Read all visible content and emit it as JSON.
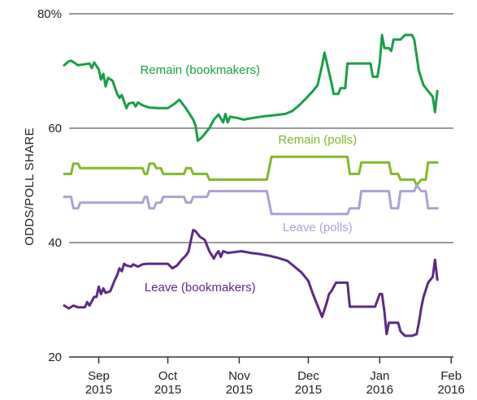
{
  "chart_data": {
    "type": "line",
    "ylabel": "ODDS/POLL SHARE",
    "ylim": [
      20,
      80
    ],
    "yticks": [
      {
        "value": 20,
        "label": "20"
      },
      {
        "value": 40,
        "label": "40"
      },
      {
        "value": 60,
        "label": "60"
      },
      {
        "value": 80,
        "label": "80%"
      }
    ],
    "xlim": [
      "2015-08-17",
      "2016-02-02"
    ],
    "xticks": [
      {
        "date": "2015-09-01",
        "month": "Sep",
        "year": "2015"
      },
      {
        "date": "2015-10-01",
        "month": "Oct",
        "year": "2015"
      },
      {
        "date": "2015-11-01",
        "month": "Nov",
        "year": "2015"
      },
      {
        "date": "2015-12-01",
        "month": "Dec",
        "year": "2015"
      },
      {
        "date": "2016-01-01",
        "month": "Jan",
        "year": "2016"
      },
      {
        "date": "2016-02-01",
        "month": "Feb",
        "year": "2016"
      }
    ],
    "grid": "horizontal",
    "series": [
      {
        "name": "Remain (bookmakers)",
        "color": "#1a9e48",
        "label_date": "2015-10-15",
        "label_value": 69.5,
        "points": [
          [
            "2015-08-17",
            71.0
          ],
          [
            "2015-08-19",
            71.7
          ],
          [
            "2015-08-20",
            71.8
          ],
          [
            "2015-08-23",
            71.0
          ],
          [
            "2015-08-28",
            71.3
          ],
          [
            "2015-08-29",
            70.5
          ],
          [
            "2015-08-30",
            71.5
          ],
          [
            "2015-09-01",
            70.3
          ],
          [
            "2015-09-02",
            68.5
          ],
          [
            "2015-09-03",
            69.5
          ],
          [
            "2015-09-04",
            67.3
          ],
          [
            "2015-09-05",
            68.8
          ],
          [
            "2015-09-07",
            68.3
          ],
          [
            "2015-09-09",
            66.0
          ],
          [
            "2015-09-10",
            65.3
          ],
          [
            "2015-09-11",
            65.8
          ],
          [
            "2015-09-13",
            63.5
          ],
          [
            "2015-09-14",
            64.3
          ],
          [
            "2015-09-16",
            64.5
          ],
          [
            "2015-09-17",
            63.8
          ],
          [
            "2015-09-18",
            64.5
          ],
          [
            "2015-09-20",
            64.0
          ],
          [
            "2015-09-23",
            63.6
          ],
          [
            "2015-09-27",
            63.5
          ],
          [
            "2015-10-01",
            63.5
          ],
          [
            "2015-10-04",
            64.3
          ],
          [
            "2015-10-06",
            65.0
          ],
          [
            "2015-10-09",
            63.4
          ],
          [
            "2015-10-12",
            61.5
          ],
          [
            "2015-10-13",
            60.5
          ],
          [
            "2015-10-14",
            57.8
          ],
          [
            "2015-10-16",
            58.5
          ],
          [
            "2015-10-19",
            60.0
          ],
          [
            "2015-10-21",
            61.5
          ],
          [
            "2015-10-23",
            62.4
          ],
          [
            "2015-10-25",
            61.0
          ],
          [
            "2015-10-26",
            62.5
          ],
          [
            "2015-10-27",
            61.0
          ],
          [
            "2015-10-28",
            62.0
          ],
          [
            "2015-10-31",
            61.8
          ],
          [
            "2015-11-03",
            61.5
          ],
          [
            "2015-11-07",
            61.8
          ],
          [
            "2015-11-12",
            62.1
          ],
          [
            "2015-11-17",
            62.3
          ],
          [
            "2015-11-21",
            62.5
          ],
          [
            "2015-11-24",
            63.0
          ],
          [
            "2015-11-27",
            64.0
          ],
          [
            "2015-11-30",
            65.2
          ],
          [
            "2015-12-03",
            66.5
          ],
          [
            "2015-12-05",
            67.5
          ],
          [
            "2015-12-07",
            71.0
          ],
          [
            "2015-12-08",
            73.2
          ],
          [
            "2015-12-09",
            71.5
          ],
          [
            "2015-12-11",
            68.0
          ],
          [
            "2015-12-12",
            66.0
          ],
          [
            "2015-12-14",
            66.0
          ],
          [
            "2015-12-15",
            67.0
          ],
          [
            "2015-12-17",
            67.0
          ],
          [
            "2015-12-18",
            71.3
          ],
          [
            "2015-12-22",
            71.3
          ],
          [
            "2015-12-26",
            71.3
          ],
          [
            "2015-12-28",
            71.3
          ],
          [
            "2015-12-29",
            69.0
          ],
          [
            "2015-12-31",
            69.0
          ],
          [
            "2016-01-01",
            71.5
          ],
          [
            "2016-01-02",
            76.3
          ],
          [
            "2016-01-03",
            74.0
          ],
          [
            "2016-01-05",
            74.0
          ],
          [
            "2016-01-06",
            73.5
          ],
          [
            "2016-01-07",
            75.5
          ],
          [
            "2016-01-10",
            75.5
          ],
          [
            "2016-01-12",
            76.3
          ],
          [
            "2016-01-15",
            76.3
          ],
          [
            "2016-01-16",
            75.5
          ],
          [
            "2016-01-18",
            70.0
          ],
          [
            "2016-01-20",
            67.5
          ],
          [
            "2016-01-22",
            66.5
          ],
          [
            "2016-01-24",
            65.5
          ],
          [
            "2016-01-25",
            62.8
          ],
          [
            "2016-01-26",
            66.5
          ]
        ]
      },
      {
        "name": "Remain (polls)",
        "color": "#7fba2a",
        "label_date": "2015-12-05",
        "label_value": 57.3,
        "points": [
          [
            "2015-08-17",
            52.0
          ],
          [
            "2015-08-20",
            52.0
          ],
          [
            "2015-08-21",
            53.8
          ],
          [
            "2015-08-23",
            53.8
          ],
          [
            "2015-08-24",
            53.0
          ],
          [
            "2015-09-20",
            53.0
          ],
          [
            "2015-09-21",
            52.0
          ],
          [
            "2015-09-22",
            52.0
          ],
          [
            "2015-09-23",
            53.8
          ],
          [
            "2015-09-25",
            53.8
          ],
          [
            "2015-09-26",
            53.0
          ],
          [
            "2015-09-28",
            53.0
          ],
          [
            "2015-09-29",
            52.0
          ],
          [
            "2015-10-08",
            52.0
          ],
          [
            "2015-10-09",
            53.0
          ],
          [
            "2015-10-11",
            53.0
          ],
          [
            "2015-10-12",
            52.0
          ],
          [
            "2015-10-18",
            52.0
          ],
          [
            "2015-10-19",
            51.0
          ],
          [
            "2015-11-13",
            51.0
          ],
          [
            "2015-11-15",
            55.0
          ],
          [
            "2015-12-18",
            55.0
          ],
          [
            "2015-12-19",
            52.0
          ],
          [
            "2015-12-23",
            52.0
          ],
          [
            "2015-12-24",
            54.0
          ],
          [
            "2016-01-05",
            54.0
          ],
          [
            "2016-01-06",
            52.0
          ],
          [
            "2016-01-09",
            52.0
          ],
          [
            "2016-01-10",
            51.0
          ],
          [
            "2016-01-16",
            51.0
          ],
          [
            "2016-01-17",
            50.0
          ],
          [
            "2016-01-19",
            51.0
          ],
          [
            "2016-01-21",
            51.0
          ],
          [
            "2016-01-22",
            54.0
          ],
          [
            "2016-01-26",
            54.0
          ]
        ]
      },
      {
        "name": "Leave (polls)",
        "color": "#a9a2d3",
        "label_date": "2015-12-05",
        "label_value": 42.0,
        "points": [
          [
            "2015-08-17",
            48.0
          ],
          [
            "2015-08-20",
            48.0
          ],
          [
            "2015-08-21",
            46.0
          ],
          [
            "2015-08-23",
            46.0
          ],
          [
            "2015-08-24",
            47.0
          ],
          [
            "2015-09-20",
            47.0
          ],
          [
            "2015-09-21",
            48.0
          ],
          [
            "2015-09-22",
            48.0
          ],
          [
            "2015-09-23",
            46.0
          ],
          [
            "2015-09-25",
            46.0
          ],
          [
            "2015-09-26",
            47.0
          ],
          [
            "2015-09-28",
            47.0
          ],
          [
            "2015-09-29",
            48.0
          ],
          [
            "2015-10-08",
            48.0
          ],
          [
            "2015-10-09",
            47.0
          ],
          [
            "2015-10-11",
            47.0
          ],
          [
            "2015-10-12",
            48.0
          ],
          [
            "2015-10-18",
            48.0
          ],
          [
            "2015-10-19",
            49.0
          ],
          [
            "2015-11-13",
            49.0
          ],
          [
            "2015-11-15",
            45.0
          ],
          [
            "2015-12-18",
            45.0
          ],
          [
            "2015-12-19",
            46.0
          ],
          [
            "2015-12-23",
            46.0
          ],
          [
            "2015-12-24",
            49.0
          ],
          [
            "2016-01-05",
            49.0
          ],
          [
            "2016-01-06",
            46.0
          ],
          [
            "2016-01-09",
            46.0
          ],
          [
            "2016-01-10",
            49.0
          ],
          [
            "2016-01-16",
            49.0
          ],
          [
            "2016-01-17",
            50.0
          ],
          [
            "2016-01-19",
            49.0
          ],
          [
            "2016-01-21",
            49.0
          ],
          [
            "2016-01-22",
            46.0
          ],
          [
            "2016-01-26",
            46.0
          ]
        ]
      },
      {
        "name": "Leave (bookmakers)",
        "color": "#5c2a86",
        "label_date": "2015-10-15",
        "label_value": 31.5,
        "points": [
          [
            "2015-08-17",
            29.0
          ],
          [
            "2015-08-19",
            28.5
          ],
          [
            "2015-08-21",
            29.0
          ],
          [
            "2015-08-23",
            28.7
          ],
          [
            "2015-08-26",
            28.7
          ],
          [
            "2015-08-27",
            29.6
          ],
          [
            "2015-08-28",
            29.0
          ],
          [
            "2015-08-30",
            30.5
          ],
          [
            "2015-08-31",
            30.5
          ],
          [
            "2015-09-01",
            32.3
          ],
          [
            "2015-09-02",
            31.0
          ],
          [
            "2015-09-03",
            32.0
          ],
          [
            "2015-09-04",
            31.2
          ],
          [
            "2015-09-06",
            31.5
          ],
          [
            "2015-09-08",
            33.5
          ],
          [
            "2015-09-09",
            34.3
          ],
          [
            "2015-09-10",
            35.5
          ],
          [
            "2015-09-11",
            35.0
          ],
          [
            "2015-09-12",
            36.3
          ],
          [
            "2015-09-13",
            36.0
          ],
          [
            "2015-09-15",
            35.8
          ],
          [
            "2015-09-16",
            36.2
          ],
          [
            "2015-09-18",
            35.8
          ],
          [
            "2015-09-20",
            36.2
          ],
          [
            "2015-09-22",
            36.3
          ],
          [
            "2015-09-26",
            36.3
          ],
          [
            "2015-09-30",
            36.3
          ],
          [
            "2015-10-01",
            36.3
          ],
          [
            "2015-10-03",
            35.5
          ],
          [
            "2015-10-05",
            36.0
          ],
          [
            "2015-10-07",
            37.0
          ],
          [
            "2015-10-09",
            37.8
          ],
          [
            "2015-10-10",
            38.5
          ],
          [
            "2015-10-12",
            42.2
          ],
          [
            "2015-10-13",
            42.0
          ],
          [
            "2015-10-15",
            41.0
          ],
          [
            "2015-10-17",
            40.5
          ],
          [
            "2015-10-19",
            38.5
          ],
          [
            "2015-10-21",
            37.2
          ],
          [
            "2015-10-22",
            38.0
          ],
          [
            "2015-10-23",
            38.5
          ],
          [
            "2015-10-24",
            37.5
          ],
          [
            "2015-10-25",
            38.5
          ],
          [
            "2015-10-27",
            38.2
          ],
          [
            "2015-10-29",
            38.3
          ],
          [
            "2015-11-02",
            38.5
          ],
          [
            "2015-11-06",
            38.2
          ],
          [
            "2015-11-10",
            38.0
          ],
          [
            "2015-11-14",
            37.7
          ],
          [
            "2015-11-18",
            37.3
          ],
          [
            "2015-11-22",
            36.8
          ],
          [
            "2015-11-25",
            35.8
          ],
          [
            "2015-11-28",
            34.8
          ],
          [
            "2015-12-01",
            33.3
          ],
          [
            "2015-12-03",
            31.0
          ],
          [
            "2015-12-05",
            29.0
          ],
          [
            "2015-12-07",
            27.0
          ],
          [
            "2015-12-09",
            29.5
          ],
          [
            "2015-12-10",
            31.0
          ],
          [
            "2015-12-11",
            31.5
          ],
          [
            "2015-12-13",
            33.0
          ],
          [
            "2015-12-15",
            33.0
          ],
          [
            "2015-12-18",
            33.0
          ],
          [
            "2015-12-19",
            28.8
          ],
          [
            "2015-12-22",
            28.8
          ],
          [
            "2015-12-26",
            28.8
          ],
          [
            "2015-12-30",
            28.8
          ],
          [
            "2016-01-01",
            31.0
          ],
          [
            "2016-01-02",
            31.0
          ],
          [
            "2016-01-03",
            28.0
          ],
          [
            "2016-01-04",
            24.0
          ],
          [
            "2016-01-05",
            26.0
          ],
          [
            "2016-01-07",
            26.0
          ],
          [
            "2016-01-09",
            26.0
          ],
          [
            "2016-01-10",
            24.5
          ],
          [
            "2016-01-12",
            23.7
          ],
          [
            "2016-01-15",
            23.7
          ],
          [
            "2016-01-17",
            24.0
          ],
          [
            "2016-01-18",
            26.0
          ],
          [
            "2016-01-19",
            28.5
          ],
          [
            "2016-01-20",
            30.5
          ],
          [
            "2016-01-22",
            33.0
          ],
          [
            "2016-01-23",
            33.5
          ],
          [
            "2016-01-24",
            34.0
          ],
          [
            "2016-01-25",
            37.0
          ],
          [
            "2016-01-26",
            33.5
          ]
        ]
      }
    ]
  }
}
